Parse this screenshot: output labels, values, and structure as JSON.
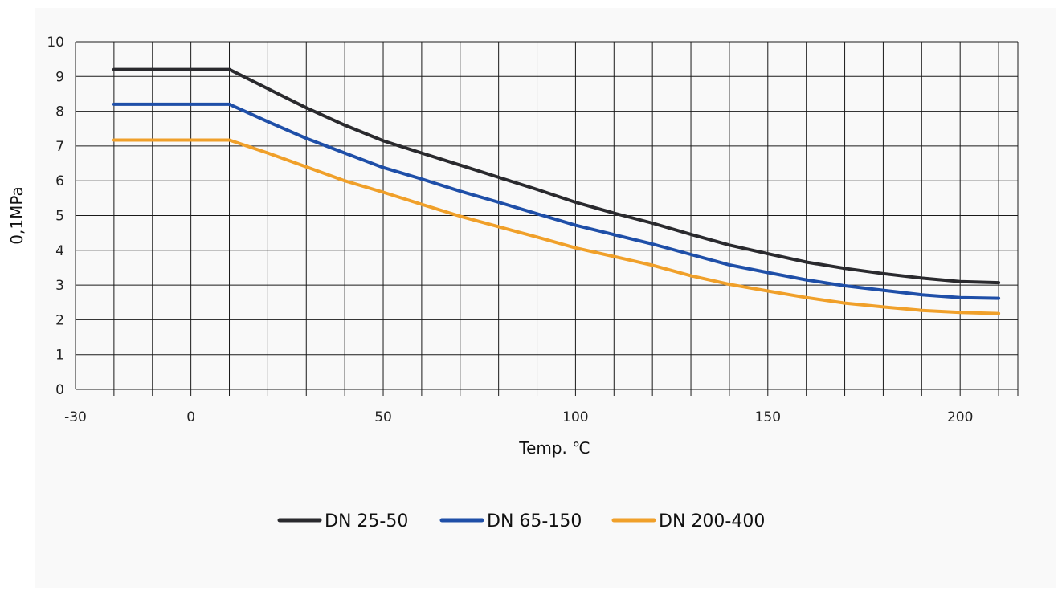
{
  "chart_data": {
    "type": "line",
    "xlabel": "Temp. ℃",
    "ylabel": "0,1MPa",
    "xlim": [
      -30,
      215
    ],
    "ylim": [
      0,
      10
    ],
    "x_ticks": [
      -30,
      0,
      50,
      100,
      150,
      200
    ],
    "y_ticks": [
      0,
      1,
      2,
      3,
      4,
      5,
      6,
      7,
      8,
      9,
      10
    ],
    "grid": true,
    "x_grid_step": 10,
    "legend_position": "bottom",
    "x": [
      -20,
      10,
      20,
      30,
      40,
      50,
      60,
      70,
      80,
      90,
      100,
      110,
      120,
      130,
      140,
      150,
      160,
      170,
      180,
      190,
      200,
      210
    ],
    "series": [
      {
        "name": "DN 25-50",
        "color": "#2a2a2e",
        "values": [
          9.2,
          9.2,
          8.65,
          8.1,
          7.6,
          7.15,
          6.8,
          6.45,
          6.1,
          5.75,
          5.38,
          5.07,
          4.78,
          4.46,
          4.15,
          3.9,
          3.66,
          3.48,
          3.33,
          3.2,
          3.1,
          3.07
        ]
      },
      {
        "name": "DN 65-150",
        "color": "#1f4fa8",
        "values": [
          8.2,
          8.2,
          7.7,
          7.22,
          6.8,
          6.38,
          6.05,
          5.7,
          5.38,
          5.05,
          4.72,
          4.45,
          4.18,
          3.88,
          3.58,
          3.36,
          3.15,
          2.98,
          2.85,
          2.72,
          2.64,
          2.62
        ]
      },
      {
        "name": "DN 200-400",
        "color": "#f0a02a",
        "values": [
          7.17,
          7.17,
          6.8,
          6.4,
          6.0,
          5.67,
          5.32,
          4.98,
          4.68,
          4.38,
          4.07,
          3.82,
          3.57,
          3.27,
          3.02,
          2.83,
          2.64,
          2.48,
          2.37,
          2.27,
          2.21,
          2.18
        ]
      }
    ]
  }
}
